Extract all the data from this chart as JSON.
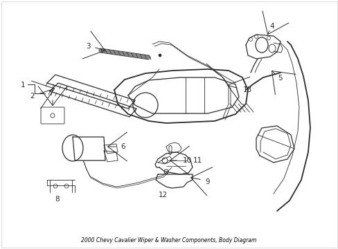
{
  "title": "2000 Chevy Cavalier Wiper & Washer Components, Body Diagram",
  "background_color": "#ffffff",
  "line_color": "#2a2a2a",
  "label_color": "#000000",
  "fig_width": 4.89,
  "fig_height": 3.6,
  "dpi": 100
}
